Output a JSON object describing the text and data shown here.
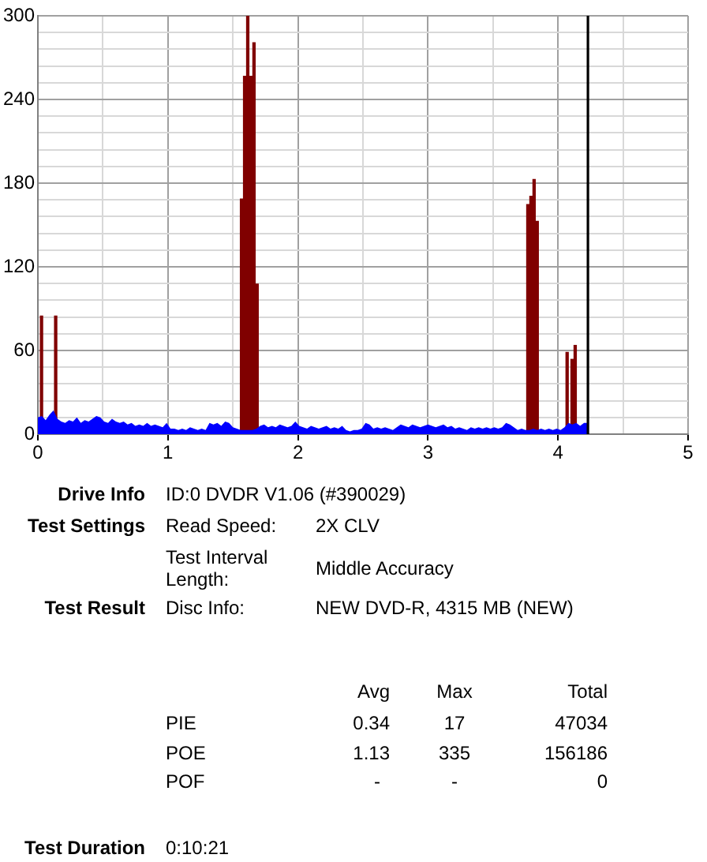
{
  "chart_data": [
    {
      "type": "bar",
      "xlim": [
        0,
        5
      ],
      "xticks": [
        0,
        {
          "value": 0.5,
          "label": null
        },
        1,
        {
          "value": 1.5,
          "label": null
        },
        2,
        {
          "value": 2.5,
          "label": null
        },
        3,
        {
          "value": 3.5,
          "label": null
        },
        4,
        {
          "value": 4.5,
          "label": null
        },
        5
      ],
      "ylim": [
        0,
        300
      ],
      "yticks": [
        0,
        {
          "value": 12,
          "label": null
        },
        {
          "value": 24,
          "label": null
        },
        {
          "value": 36,
          "label": null
        },
        {
          "value": 48,
          "label": null
        },
        60,
        {
          "value": 72,
          "label": null
        },
        {
          "value": 84,
          "label": null
        },
        {
          "value": 96,
          "label": null
        },
        {
          "value": 108,
          "label": null
        },
        120,
        {
          "value": 132,
          "label": null
        },
        {
          "value": 144,
          "label": null
        },
        {
          "value": 156,
          "label": null
        },
        {
          "value": 168,
          "label": null
        },
        180,
        {
          "value": 192,
          "label": null
        },
        {
          "value": 204,
          "label": null
        },
        {
          "value": 216,
          "label": null
        },
        {
          "value": 228,
          "label": null
        },
        240,
        {
          "value": 252,
          "label": null
        },
        {
          "value": 264,
          "label": null
        },
        {
          "value": 276,
          "label": null
        },
        {
          "value": 288,
          "label": null
        },
        300
      ],
      "grid": true,
      "ref_lines": [
        {
          "axis": "x",
          "value": 4.23,
          "color": "#000000"
        }
      ],
      "series": [
        {
          "type": "area",
          "color": "#0000ff",
          "x": [
            0,
            0.03,
            0.06,
            0.09,
            0.12,
            0.15,
            0.18,
            0.21,
            0.24,
            0.27,
            0.3,
            0.33,
            0.36,
            0.39,
            0.42,
            0.45,
            0.48,
            0.51,
            0.54,
            0.57,
            0.6,
            0.63,
            0.66,
            0.69,
            0.72,
            0.75,
            0.78,
            0.81,
            0.84,
            0.87,
            0.9,
            0.93,
            0.96,
            0.99,
            1.02,
            1.05,
            1.08,
            1.11,
            1.14,
            1.17,
            1.2,
            1.23,
            1.26,
            1.29,
            1.32,
            1.35,
            1.38,
            1.41,
            1.44,
            1.47,
            1.5,
            1.53,
            1.56,
            1.59,
            1.62,
            1.65,
            1.68,
            1.71,
            1.74,
            1.77,
            1.8,
            1.83,
            1.86,
            1.89,
            1.92,
            1.95,
            1.98,
            2.01,
            2.04,
            2.07,
            2.1,
            2.13,
            2.16,
            2.19,
            2.22,
            2.25,
            2.28,
            2.31,
            2.34,
            2.37,
            2.4,
            2.43,
            2.46,
            2.49,
            2.52,
            2.55,
            2.58,
            2.61,
            2.64,
            2.67,
            2.7,
            2.73,
            2.76,
            2.79,
            2.82,
            2.85,
            2.88,
            2.91,
            2.94,
            2.97,
            3,
            3.03,
            3.06,
            3.09,
            3.12,
            3.15,
            3.18,
            3.21,
            3.24,
            3.27,
            3.3,
            3.33,
            3.36,
            3.39,
            3.42,
            3.45,
            3.48,
            3.51,
            3.54,
            3.57,
            3.6,
            3.63,
            3.66,
            3.69,
            3.72,
            3.75,
            3.78,
            3.81,
            3.84,
            3.87,
            3.9,
            3.93,
            3.96,
            3.99,
            4.02,
            4.05,
            4.08,
            4.11,
            4.14,
            4.17,
            4.2,
            4.227
          ],
          "values": [
            12,
            13,
            10,
            14,
            17,
            11,
            9,
            8,
            10,
            9,
            12,
            8,
            10,
            9,
            11,
            13,
            12,
            9,
            8,
            11,
            9,
            8,
            9,
            7,
            8,
            6,
            7,
            6,
            8,
            6,
            7,
            6,
            5,
            8,
            4,
            4,
            3,
            4,
            3,
            5,
            4,
            3,
            4,
            3,
            8,
            7,
            8,
            6,
            9,
            8,
            5,
            4,
            3,
            3,
            3,
            3,
            4,
            6,
            7,
            5,
            6,
            5,
            7,
            6,
            5,
            6,
            9,
            6,
            5,
            4,
            6,
            5,
            4,
            5,
            6,
            4,
            5,
            4,
            6,
            3,
            2,
            3,
            3,
            4,
            8,
            7,
            4,
            5,
            4,
            5,
            4,
            3,
            5,
            7,
            6,
            5,
            7,
            6,
            5,
            6,
            7,
            6,
            5,
            6,
            7,
            5,
            6,
            4,
            5,
            4,
            3,
            5,
            4,
            5,
            4,
            5,
            4,
            5,
            4,
            5,
            8,
            7,
            5,
            3,
            4,
            3,
            3,
            4,
            3,
            4,
            3,
            4,
            3,
            4,
            3,
            5,
            8,
            7,
            8,
            6,
            8,
            8
          ]
        },
        {
          "type": "bar",
          "color": "#800000",
          "x": [
            0.028,
            0.137,
            1.566,
            1.59,
            1.614,
            1.638,
            1.662,
            1.686,
            3.768,
            3.792,
            3.816,
            3.84,
            4.07,
            4.108,
            4.132
          ],
          "values": [
            85,
            85,
            169,
            257,
            300,
            257,
            281,
            108,
            165,
            171,
            183,
            153,
            59,
            54,
            64
          ]
        }
      ]
    },
    {
      "type": "other",
      "annotations": [
        "Drive Info",
        "ID:0 DVDR V1.06 (#390029)",
        "Test Settings",
        "Read Speed:",
        "2X CLV",
        "Test Interval Length:",
        "Middle Accuracy",
        "Test Result",
        "Disc Info:",
        "NEW DVD-R, 4315 MB (NEW)",
        "Avg",
        "Max",
        "Total",
        "PIE",
        "0.34",
        "17",
        "47034",
        "POE",
        "1.13",
        "335",
        "156186",
        "POF",
        "-",
        "-",
        "0",
        "Test Duration",
        "0:10:21"
      ]
    }
  ]
}
